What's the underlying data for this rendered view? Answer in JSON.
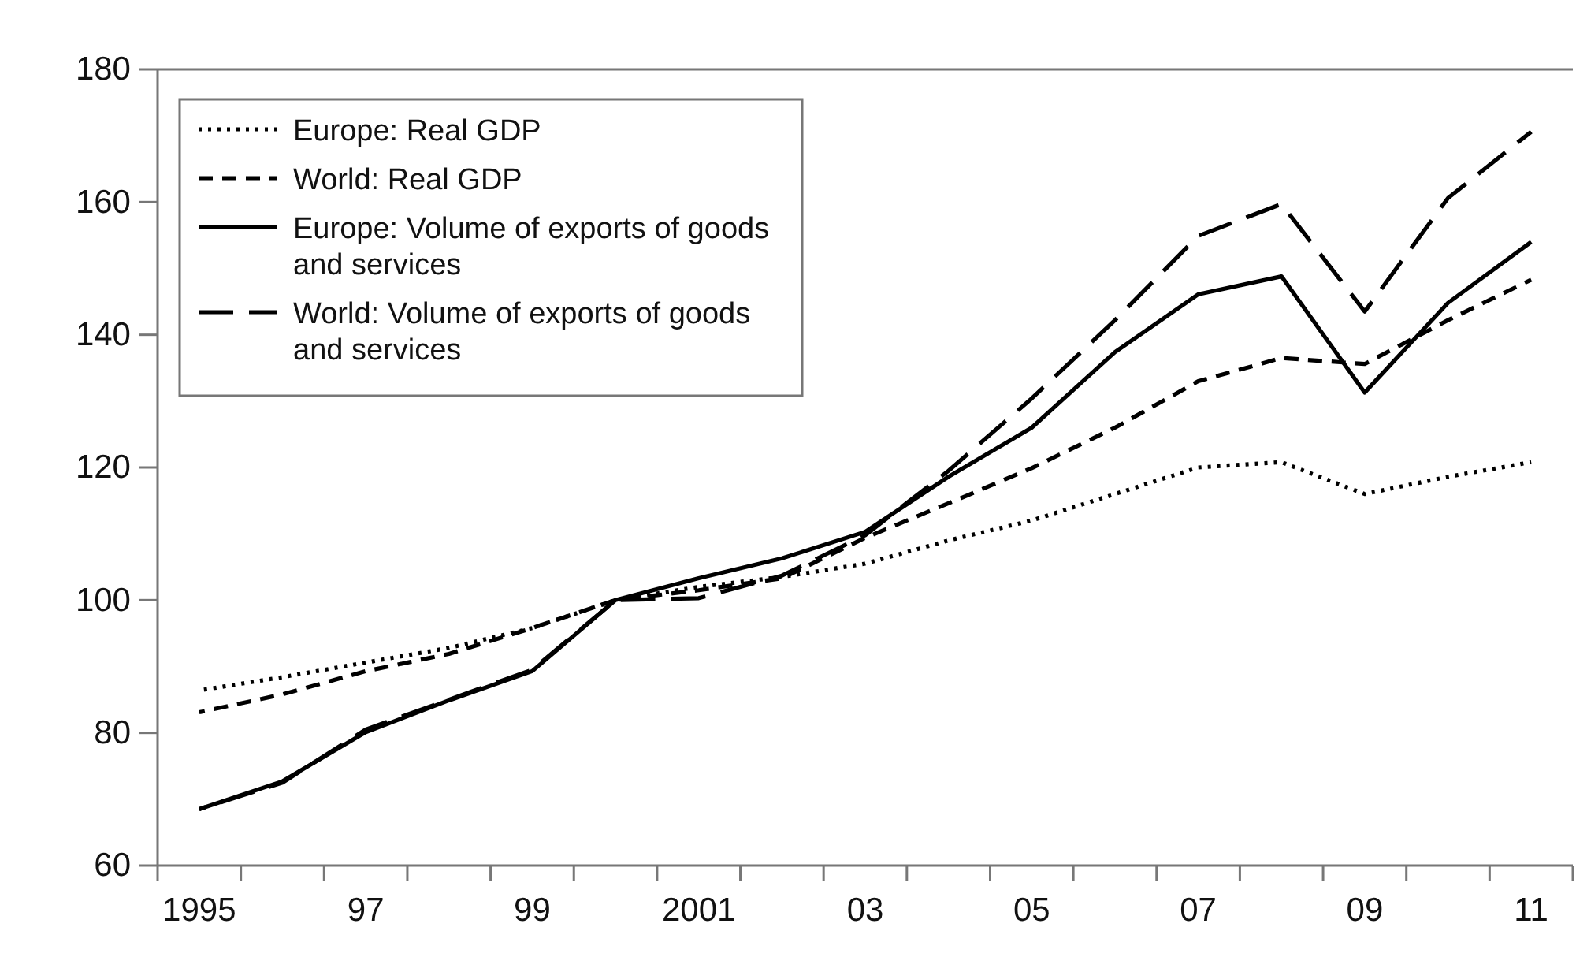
{
  "chart_data": {
    "type": "line",
    "categories": [
      "1995",
      null,
      "97",
      null,
      "99",
      null,
      "2001",
      null,
      "03",
      null,
      "05",
      null,
      "07",
      null,
      "09",
      null,
      "11"
    ],
    "ylim": [
      60,
      180
    ],
    "yticks": [
      60,
      80,
      100,
      120,
      140,
      160,
      180
    ],
    "grid": false,
    "legend": "top left",
    "marker": "none",
    "series": [
      {
        "name": "Europe: Real GDP",
        "color": "#000000",
        "line_style": "dotted",
        "values": [
          86.4,
          88.4,
          90.6,
          92.8,
          95.8,
          100,
          102,
          103.5,
          105.5,
          109,
          112,
          116,
          120,
          120.8,
          116,
          118.6,
          120.8
        ]
      },
      {
        "name": "World: Real GDP",
        "color": "#000000",
        "line_style": "dashed",
        "values": [
          83.1,
          85.8,
          89.3,
          91.9,
          95.8,
          100,
          101.5,
          103.3,
          109.4,
          114.6,
          119.9,
          126,
          133,
          136.5,
          135.6,
          142.2,
          148.3
        ]
      },
      {
        "name": "Europe: Volume of exports of goods and services",
        "color": "#000000",
        "line_style": "solid",
        "values": [
          68.5,
          72.7,
          80.1,
          84.9,
          89.3,
          100,
          103.3,
          106.3,
          110.3,
          118.6,
          126,
          137.4,
          146.1,
          148.8,
          131.3,
          144.8,
          154
        ]
      },
      {
        "name": "World: Volume of exports of goods and services",
        "color": "#000000",
        "line_style": "long-dashed",
        "values": [
          68.5,
          72.5,
          80.5,
          85,
          89.5,
          100,
          100.3,
          103.7,
          109.8,
          119.5,
          130.4,
          142.2,
          154.9,
          159.7,
          143.5,
          160.6,
          170.6
        ]
      }
    ]
  }
}
